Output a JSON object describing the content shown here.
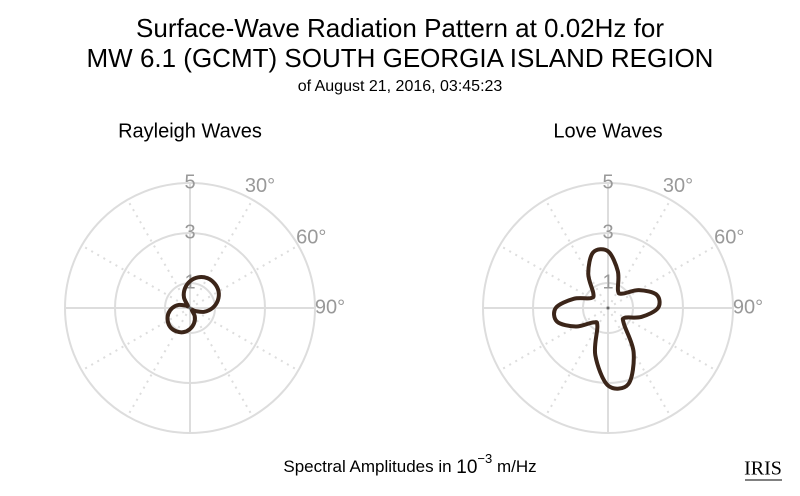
{
  "title": [
    "Surface-Wave Radiation Pattern at 0.02Hz for",
    "MW 6.1 (GCMT) SOUTH GEORGIA ISLAND REGION"
  ],
  "subtitle": "of August 21, 2016, 03:45:23",
  "footer": {
    "text": "Spectral Amplitudes in ",
    "base": "10",
    "exponent": "−3",
    "unit": " m/Hz"
  },
  "logo": "IRIS",
  "chart_data": [
    {
      "type": "polar",
      "title": "Rayleigh Waves",
      "color": "#3b2519",
      "rlim": [
        0,
        5
      ],
      "rticks": [
        1,
        3,
        5
      ],
      "thetagrid": [
        0,
        30,
        60,
        90,
        120,
        150,
        180,
        210,
        240,
        270,
        300,
        330
      ],
      "thetaticks": [
        {
          "value": 30,
          "label": "30°"
        },
        {
          "value": 60,
          "label": "60°"
        },
        {
          "value": 90,
          "label": "90°"
        }
      ],
      "theta": [
        0,
        15,
        30,
        45,
        60,
        75,
        90,
        105,
        120,
        135,
        150,
        165,
        180,
        195,
        210,
        225,
        240,
        255,
        270,
        285,
        300,
        315,
        330,
        345
      ],
      "r": [
        1.07,
        1.27,
        1.38,
        1.39,
        1.32,
        1.15,
        0.9,
        0.59,
        0.24,
        0.1,
        0.38,
        0.63,
        0.84,
        1.0,
        1.08,
        1.1,
        1.03,
        0.9,
        0.71,
        0.47,
        0.19,
        0.12,
        0.48,
        0.8
      ]
    },
    {
      "type": "polar",
      "title": "Love Waves",
      "color": "#3b2519",
      "rlim": [
        0,
        5
      ],
      "rticks": [
        1,
        3,
        5
      ],
      "thetagrid": [
        0,
        30,
        60,
        90,
        120,
        150,
        180,
        210,
        240,
        270,
        300,
        330
      ],
      "thetaticks": [
        {
          "value": 30,
          "label": "30°"
        },
        {
          "value": 60,
          "label": "60°"
        },
        {
          "value": 90,
          "label": "90°"
        }
      ],
      "theta": [
        0,
        15,
        30,
        45,
        60,
        75,
        90,
        105,
        120,
        135,
        150,
        165,
        180,
        195,
        210,
        225,
        240,
        255,
        270,
        285,
        300,
        315,
        330,
        345
      ],
      "r": [
        2.27,
        1.52,
        0.8,
        0.81,
        1.43,
        2.02,
        2.0,
        1.38,
        0.78,
        0.9,
        2.05,
        3.15,
        3.1,
        1.96,
        0.85,
        0.81,
        1.48,
        2.11,
        2.09,
        1.42,
        0.79,
        0.83,
        1.58,
        2.3
      ]
    }
  ]
}
